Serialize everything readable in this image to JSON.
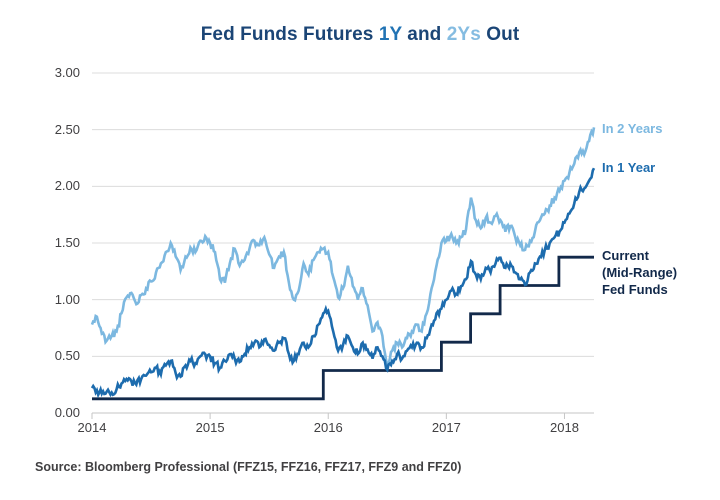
{
  "colors": {
    "background": "#ffffff",
    "gridline": "#dcdcdc",
    "axis": "#c6c6c6",
    "tick_label": "#414042",
    "title_navy": "#1b4576",
    "light_blue": "#7cb8e0",
    "medium_blue": "#1d6cae",
    "navy": "#12294a",
    "source_text": "#414042"
  },
  "footer": {
    "source": "Source: Bloomberg Professional (FFZ15, FFZ16, FFZ17, FFZ9 and FFZ0)"
  },
  "legend": {
    "in_2_years": {
      "label": "In 2 Years",
      "color": "#7cb8e0"
    },
    "in_1_year": {
      "label": "In 1 Year",
      "color": "#1d6cae"
    },
    "current": {
      "line1": "Current",
      "line2": "(Mid-Range)",
      "line3": "Fed Funds",
      "color": "#12294a"
    }
  },
  "chart_data": {
    "type": "line",
    "title": "Fed Funds Futures 1Y and 2Ys Out",
    "title_segments": [
      {
        "text": "Fed Funds Futures ",
        "color": "#1b4576"
      },
      {
        "text": "1Y",
        "color": "#2173b4"
      },
      {
        "text": " and ",
        "color": "#1b4576"
      },
      {
        "text": "2Ys",
        "color": "#85bce1"
      },
      {
        "text": " Out",
        "color": "#1b4576"
      }
    ],
    "xlabel": "",
    "ylabel": "",
    "grid": true,
    "legend_position": "right-of-line-ends",
    "x_axis": {
      "min": 2014,
      "max": 2018.25,
      "ticks": [
        2014,
        2015,
        2016,
        2017,
        2018
      ],
      "labels": [
        "2014",
        "2015",
        "2016",
        "2017",
        "2018"
      ]
    },
    "y_axis": {
      "min": 0,
      "max": 3,
      "step": 0.5,
      "labels": [
        "0.00",
        "0.50",
        "1.00",
        "1.50",
        "2.00",
        "2.50",
        "3.00"
      ]
    },
    "series": [
      {
        "id": "current-mid-range-fed-funds",
        "name": "Current (Mid-Range) Fed Funds",
        "color": "#12294a",
        "type": "step-line",
        "points": [
          [
            2014.0,
            0.125
          ],
          [
            2015.958,
            0.125
          ],
          [
            2015.958,
            0.375
          ],
          [
            2016.958,
            0.375
          ],
          [
            2016.958,
            0.625
          ],
          [
            2017.205,
            0.625
          ],
          [
            2017.205,
            0.875
          ],
          [
            2017.455,
            0.875
          ],
          [
            2017.455,
            1.125
          ],
          [
            2017.953,
            1.125
          ],
          [
            2017.953,
            1.375
          ],
          [
            2018.25,
            1.375
          ]
        ]
      },
      {
        "id": "in-2-years",
        "name": "In 2 Years",
        "color": "#7cb8e0",
        "type": "noisy-line",
        "start": 2014.0,
        "step": 0.0416667,
        "seed": 11,
        "values": [
          0.78,
          0.85,
          0.7,
          0.64,
          0.68,
          0.72,
          0.88,
          1.02,
          1.06,
          0.96,
          1.04,
          1.1,
          1.16,
          1.24,
          1.32,
          1.42,
          1.5,
          1.38,
          1.26,
          1.38,
          1.46,
          1.42,
          1.52,
          1.56,
          1.5,
          1.42,
          1.18,
          1.15,
          1.32,
          1.45,
          1.3,
          1.35,
          1.45,
          1.52,
          1.48,
          1.55,
          1.4,
          1.28,
          1.38,
          1.42,
          1.15,
          1.0,
          1.08,
          1.32,
          1.22,
          1.35,
          1.42,
          1.45,
          1.42,
          1.2,
          1.02,
          1.1,
          1.3,
          1.12,
          1.0,
          1.1,
          0.95,
          0.72,
          0.8,
          0.68,
          0.42,
          0.55,
          0.62,
          0.58,
          0.66,
          0.72,
          0.78,
          0.72,
          0.88,
          1.1,
          1.3,
          1.5,
          1.52,
          1.58,
          1.5,
          1.55,
          1.62,
          1.9,
          1.7,
          1.63,
          1.72,
          1.68,
          1.74,
          1.7,
          1.6,
          1.65,
          1.55,
          1.48,
          1.44,
          1.52,
          1.6,
          1.7,
          1.76,
          1.83,
          1.9,
          1.96,
          2.05,
          2.12,
          2.2,
          2.3,
          2.28,
          2.4,
          2.52
        ]
      },
      {
        "id": "in-1-year",
        "name": "In 1 Year",
        "color": "#1d6cae",
        "type": "noisy-line",
        "start": 2014.0,
        "step": 0.0416667,
        "seed": 23,
        "values": [
          0.22,
          0.2,
          0.17,
          0.19,
          0.18,
          0.21,
          0.26,
          0.3,
          0.28,
          0.25,
          0.3,
          0.33,
          0.36,
          0.4,
          0.34,
          0.42,
          0.46,
          0.35,
          0.32,
          0.42,
          0.46,
          0.44,
          0.5,
          0.52,
          0.5,
          0.44,
          0.4,
          0.46,
          0.52,
          0.48,
          0.45,
          0.52,
          0.58,
          0.62,
          0.58,
          0.65,
          0.6,
          0.55,
          0.62,
          0.66,
          0.52,
          0.46,
          0.52,
          0.62,
          0.58,
          0.68,
          0.78,
          0.88,
          0.9,
          0.72,
          0.55,
          0.6,
          0.68,
          0.58,
          0.52,
          0.62,
          0.56,
          0.48,
          0.58,
          0.5,
          0.38,
          0.46,
          0.52,
          0.48,
          0.55,
          0.58,
          0.62,
          0.58,
          0.66,
          0.78,
          0.88,
          0.92,
          1.0,
          1.08,
          1.05,
          1.12,
          1.18,
          1.34,
          1.22,
          1.18,
          1.28,
          1.24,
          1.32,
          1.37,
          1.28,
          1.32,
          1.24,
          1.18,
          1.13,
          1.24,
          1.32,
          1.38,
          1.44,
          1.5,
          1.55,
          1.6,
          1.68,
          1.76,
          1.85,
          1.95,
          1.98,
          2.05,
          2.16
        ]
      }
    ]
  }
}
